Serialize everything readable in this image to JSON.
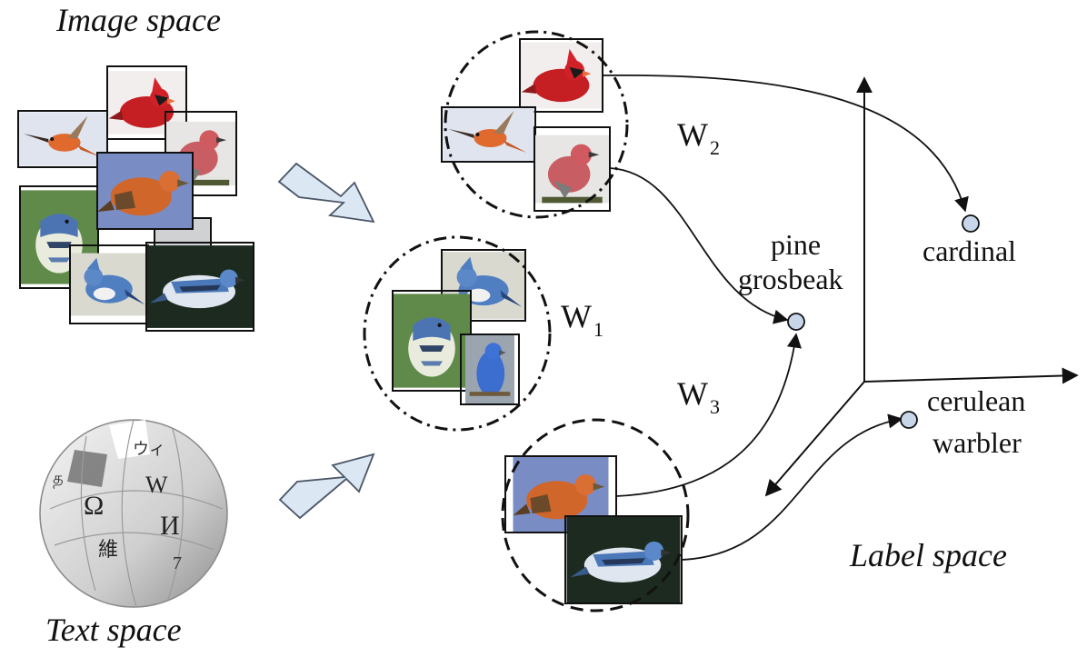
{
  "labels": {
    "image_space": "Image space",
    "text_space": "Text space",
    "label_space": "Label space"
  },
  "clusters": {
    "w1": {
      "letter": "W",
      "sub": "1"
    },
    "w2": {
      "letter": "W",
      "sub": "2"
    },
    "w3": {
      "letter": "W",
      "sub": "3"
    }
  },
  "classes": {
    "pine_grosbeak_line1": "pine",
    "pine_grosbeak_line2": "grosbeak",
    "cardinal": "cardinal",
    "cerulean_line1": "cerulean",
    "cerulean_line2": "warbler"
  },
  "globe_glyphs": {
    "omega": "Ω",
    "w": "W",
    "i": "И",
    "wei": "維",
    "wi": "ウィ",
    "ta": "த",
    "seven": "7"
  },
  "colors": {
    "arrow_fill": "#dbe7f3",
    "arrow_stroke": "#4a5566",
    "node_fill": "#c8d6ea",
    "ink": "#111111",
    "red_bird": "#c8402e",
    "blue_bird": "#5b86c4"
  }
}
